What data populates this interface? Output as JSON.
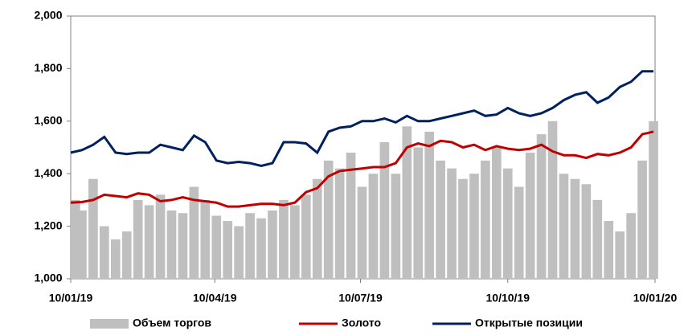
{
  "chart_data": {
    "type": "bar-line",
    "x": [
      "10/01/19",
      "17/01/19",
      "24/01/19",
      "31/01/19",
      "07/02/19",
      "14/02/19",
      "21/02/19",
      "28/02/19",
      "07/03/19",
      "14/03/19",
      "21/03/19",
      "28/03/19",
      "04/04/19",
      "11/04/19",
      "18/04/19",
      "25/04/19",
      "02/05/19",
      "09/05/19",
      "16/05/19",
      "23/05/19",
      "30/05/19",
      "06/06/19",
      "13/06/19",
      "20/06/19",
      "27/06/19",
      "04/07/19",
      "11/07/19",
      "18/07/19",
      "25/07/19",
      "01/08/19",
      "08/08/19",
      "15/08/19",
      "22/08/19",
      "29/08/19",
      "05/09/19",
      "12/09/19",
      "19/09/19",
      "26/09/19",
      "03/10/19",
      "10/10/19",
      "17/10/19",
      "24/10/19",
      "31/10/19",
      "07/11/19",
      "14/11/19",
      "21/11/19",
      "28/11/19",
      "05/12/19",
      "12/12/19",
      "19/12/19",
      "26/12/19",
      "02/01/20",
      "09/01/20"
    ],
    "series": [
      {
        "name": "Объем торгов",
        "kind": "bar",
        "color": "#bfbfbf",
        "values": [
          1300,
          1260,
          1380,
          1200,
          1150,
          1180,
          1300,
          1280,
          1320,
          1260,
          1250,
          1350,
          1300,
          1240,
          1220,
          1200,
          1250,
          1230,
          1260,
          1300,
          1280,
          1320,
          1380,
          1450,
          1420,
          1480,
          1350,
          1400,
          1520,
          1400,
          1580,
          1500,
          1560,
          1450,
          1420,
          1380,
          1400,
          1450,
          1500,
          1420,
          1350,
          1480,
          1550,
          1600,
          1400,
          1380,
          1360,
          1300,
          1220,
          1180,
          1250,
          1450,
          1600
        ]
      },
      {
        "name": "Золото",
        "kind": "line",
        "color": "#c00000",
        "values": [
          1290,
          1292,
          1300,
          1320,
          1315,
          1310,
          1325,
          1320,
          1295,
          1300,
          1310,
          1300,
          1295,
          1290,
          1275,
          1275,
          1280,
          1285,
          1285,
          1280,
          1290,
          1330,
          1345,
          1390,
          1410,
          1415,
          1420,
          1425,
          1425,
          1440,
          1500,
          1515,
          1505,
          1525,
          1520,
          1500,
          1510,
          1490,
          1505,
          1495,
          1490,
          1495,
          1510,
          1485,
          1470,
          1470,
          1460,
          1475,
          1470,
          1480,
          1500,
          1550,
          1560
        ]
      },
      {
        "name": "Открытые позиции",
        "kind": "line",
        "color": "#002060",
        "values": [
          1480,
          1490,
          1510,
          1540,
          1480,
          1475,
          1480,
          1480,
          1510,
          1500,
          1490,
          1545,
          1520,
          1450,
          1440,
          1445,
          1440,
          1430,
          1440,
          1520,
          1520,
          1515,
          1480,
          1560,
          1575,
          1580,
          1600,
          1600,
          1610,
          1595,
          1620,
          1600,
          1600,
          1610,
          1620,
          1630,
          1640,
          1620,
          1625,
          1650,
          1630,
          1620,
          1630,
          1650,
          1680,
          1700,
          1710,
          1670,
          1690,
          1730,
          1750,
          1790,
          1790
        ]
      }
    ],
    "xlim": [
      "10/01/19",
      "10/01/20"
    ],
    "xticks": [
      "10/01/19",
      "10/04/19",
      "10/07/19",
      "10/10/19",
      "10/01/20"
    ],
    "ylim": [
      1000,
      2000
    ],
    "yticks": [
      {
        "value": 1000,
        "label": "1,000"
      },
      {
        "value": 1200,
        "label": "1,200"
      },
      {
        "value": 1400,
        "label": "1,400"
      },
      {
        "value": 1600,
        "label": "1,600"
      },
      {
        "value": 1800,
        "label": "1,800"
      },
      {
        "value": 2000,
        "label": "2,000"
      }
    ],
    "legend": "bottom"
  }
}
